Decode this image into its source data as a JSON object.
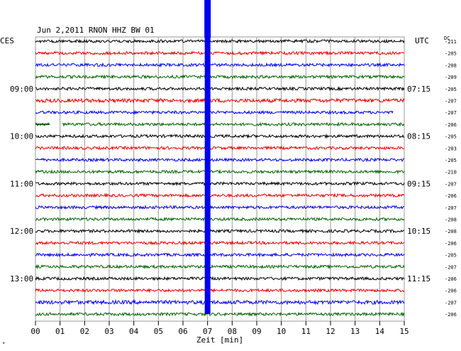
{
  "chart_data": {
    "type": "line",
    "title": "Jun 2,2011   RNON HHZ BW 01",
    "xlabel": "Zeit [min]",
    "left_axis_label": "CES",
    "right_axis_label": "UTC",
    "dc_label": "DC",
    "xlim": [
      0,
      15
    ],
    "x_ticks": [
      "00",
      "01",
      "02",
      "03",
      "04",
      "05",
      "06",
      "07",
      "08",
      "09",
      "10",
      "11",
      "12",
      "13",
      "14",
      "15"
    ],
    "trace_minutes_per_line": 15,
    "trace_colors": [
      "#000000",
      "#ee0000",
      "#0000ee",
      "#006400"
    ],
    "left_time_labels": [
      "09:00",
      "10:00",
      "11:00",
      "12:00",
      "13:00"
    ],
    "right_time_labels": [
      "07:15",
      "08:15",
      "09:15",
      "10:15",
      "11:15"
    ],
    "dc_offsets": [
      "-211",
      "-205",
      "-208",
      "-209",
      "-205",
      "-207",
      "-207",
      "-206",
      "-205",
      "-203",
      "-205",
      "-210",
      "-207",
      "-206",
      "-207",
      "-208",
      "-208",
      "-206",
      "-205",
      "-207",
      "-206",
      "-206",
      "-207",
      "-206"
    ],
    "event_marker": {
      "minute": 7.0,
      "color": "#0000ee"
    },
    "grid": true,
    "legend": "none",
    "corner_mark": "*"
  }
}
